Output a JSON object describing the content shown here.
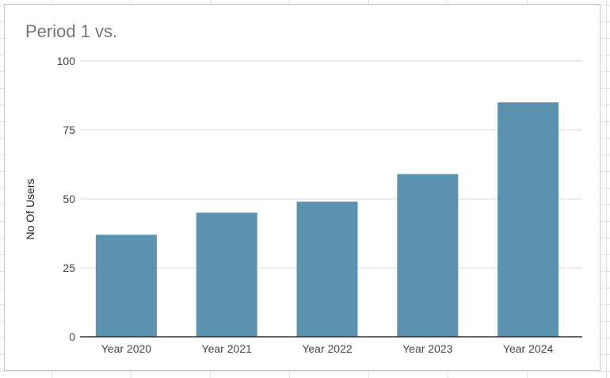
{
  "chart_data": {
    "type": "bar",
    "title": "Period 1 vs.",
    "xlabel": "",
    "ylabel": "No Of Users",
    "categories": [
      "Year 2020",
      "Year 2021",
      "Year 2022",
      "Year 2023",
      "Year 2024"
    ],
    "values": [
      37,
      45,
      49,
      59,
      85
    ],
    "ylim": [
      0,
      100
    ],
    "yticks": [
      0,
      25,
      50,
      75,
      100
    ],
    "grid": true,
    "legend": "none",
    "colors": {
      "bar": "#5b92b0",
      "grid": "#d9d9d9",
      "baseline": "#333333"
    }
  }
}
